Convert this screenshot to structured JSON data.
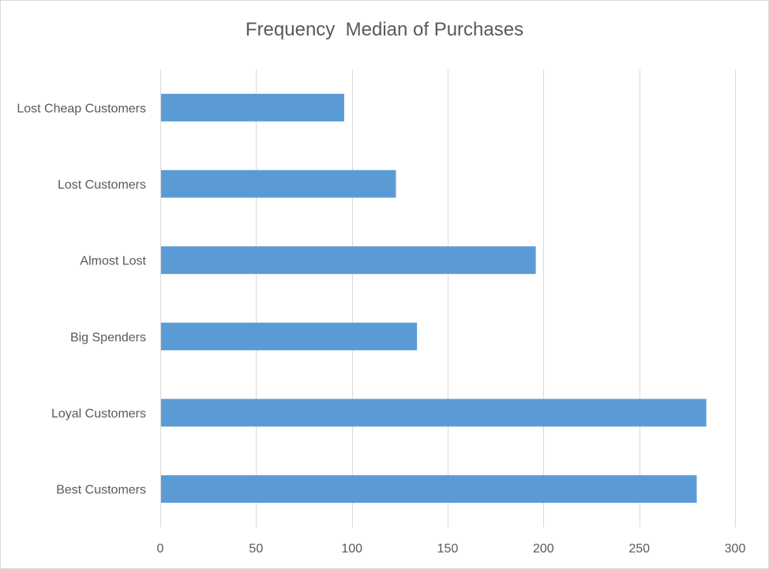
{
  "chart_data": {
    "type": "bar",
    "orientation": "horizontal",
    "title": "Frequency  Median of Purchases",
    "xlabel": "",
    "ylabel": "",
    "categories": [
      "Lost Cheap Customers",
      "Lost Customers",
      "Almost Lost",
      "Big Spenders",
      "Loyal Customers",
      "Best Customers"
    ],
    "values": [
      96,
      123,
      196,
      134,
      285,
      280
    ],
    "xlim": [
      0,
      300
    ],
    "x_ticks": [
      0,
      50,
      100,
      150,
      200,
      250,
      300
    ],
    "grid": true,
    "legend": "none",
    "bar_color": "#5b9bd5",
    "grid_color": "#d9d9d9",
    "text_color": "#595959"
  }
}
